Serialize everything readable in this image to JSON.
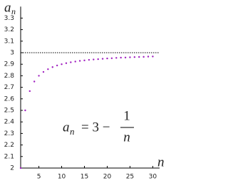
{
  "chart_data": {
    "type": "scatter",
    "y_label": "a",
    "y_label_sub": "n",
    "x_label": "n",
    "formula": {
      "lhs": "a",
      "lhs_sub": "n",
      "rhs": "= 3 −",
      "numerator": "1",
      "denominator": "n"
    },
    "x": [
      1,
      2,
      3,
      4,
      5,
      6,
      7,
      8,
      9,
      10,
      11,
      12,
      13,
      14,
      15,
      16,
      17,
      18,
      19,
      20,
      21,
      22,
      23,
      24,
      25,
      26,
      27,
      28,
      29,
      30
    ],
    "values": [
      2,
      2.5,
      2.667,
      2.75,
      2.8,
      2.833,
      2.857,
      2.875,
      2.889,
      2.9,
      2.909,
      2.917,
      2.923,
      2.929,
      2.933,
      2.938,
      2.941,
      2.944,
      2.947,
      2.95,
      2.952,
      2.955,
      2.957,
      2.958,
      2.96,
      2.962,
      2.963,
      2.964,
      2.966,
      2.967
    ],
    "color": "#a020c0",
    "hline": 3,
    "xlim": [
      1,
      31.5
    ],
    "ylim": [
      2,
      3.4
    ],
    "xticks": [
      5,
      10,
      15,
      20,
      25,
      30
    ],
    "yticks": [
      2,
      2.1,
      2.2,
      2.3,
      2.4,
      2.5,
      2.6,
      2.7,
      2.8,
      2.9,
      3,
      3.1,
      3.2,
      3.3
    ]
  }
}
